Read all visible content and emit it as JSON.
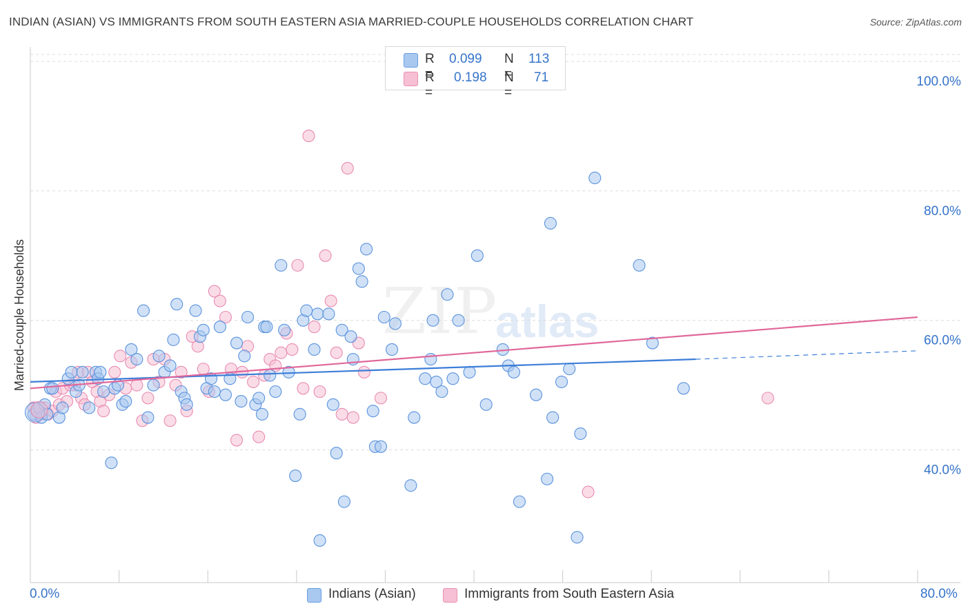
{
  "title": "INDIAN (ASIAN) VS IMMIGRANTS FROM SOUTH EASTERN ASIA MARRIED-COUPLE HOUSEHOLDS CORRELATION CHART",
  "source": "Source: ZipAtlas.com",
  "watermark": {
    "zip": "ZIP",
    "atlas": "atlas"
  },
  "colors": {
    "blue": "#3b7dd8",
    "blue_fill": "#a9c8f0",
    "pink": "#e0679a",
    "pink_fill": "#f6bfd3",
    "axis_label": "#3573c9",
    "grid": "#dcdcdc"
  },
  "legend": {
    "r_label": "R =",
    "n_label": "N =",
    "series": [
      {
        "r": "0.099",
        "n": "113"
      },
      {
        "r": "0.198",
        "n": "71"
      }
    ]
  },
  "chart_data": {
    "type": "scatter",
    "xlabel": "",
    "ylabel": "Married-couple Households",
    "xlim": [
      0,
      80
    ],
    "ylim": [
      19.5,
      101.5
    ],
    "x_tick_labels": [
      "0.0%",
      "80.0%"
    ],
    "y_ticks": [
      40,
      60,
      80,
      100
    ],
    "y_tick_labels": [
      "40.0%",
      "60.0%",
      "80.0%",
      "100.0%"
    ],
    "series": [
      {
        "name": "Indians (Asian)",
        "color": "#3b7dd8",
        "trend": {
          "x0": 0,
          "y0": 50.5,
          "x1": 60,
          "y1": 54.0,
          "dashed_to_x": 80,
          "dashed_to_y": 55.3
        },
        "points": [
          [
            0.3,
            45.5
          ],
          [
            0.6,
            46
          ],
          [
            0.8,
            46.5
          ],
          [
            1.0,
            45
          ],
          [
            1.3,
            47
          ],
          [
            1.5,
            45.5
          ],
          [
            1.8,
            49.5
          ],
          [
            2.0,
            49.5
          ],
          [
            2.6,
            45
          ],
          [
            2.9,
            46.5
          ],
          [
            3.4,
            51
          ],
          [
            3.7,
            52
          ],
          [
            4.1,
            49
          ],
          [
            4.4,
            50
          ],
          [
            4.7,
            52
          ],
          [
            5.3,
            46.5
          ],
          [
            5.9,
            52
          ],
          [
            6.1,
            51
          ],
          [
            6.3,
            52
          ],
          [
            6.6,
            49
          ],
          [
            7.3,
            38
          ],
          [
            7.6,
            49.5
          ],
          [
            7.9,
            50
          ],
          [
            8.3,
            47
          ],
          [
            8.6,
            47.5
          ],
          [
            9.1,
            55.5
          ],
          [
            9.6,
            54
          ],
          [
            10.2,
            61.5
          ],
          [
            10.6,
            45
          ],
          [
            11.1,
            50
          ],
          [
            11.6,
            54.5
          ],
          [
            12.1,
            52
          ],
          [
            12.6,
            53
          ],
          [
            12.9,
            57
          ],
          [
            13.2,
            62.5
          ],
          [
            13.6,
            49
          ],
          [
            13.9,
            48
          ],
          [
            14.1,
            47
          ],
          [
            14.9,
            61.5
          ],
          [
            15.3,
            57.5
          ],
          [
            15.6,
            58.5
          ],
          [
            15.9,
            49.5
          ],
          [
            16.3,
            51
          ],
          [
            16.6,
            49
          ],
          [
            17.1,
            59
          ],
          [
            17.6,
            48.5
          ],
          [
            18.0,
            51
          ],
          [
            18.6,
            56.5
          ],
          [
            19.0,
            47.5
          ],
          [
            19.3,
            54.5
          ],
          [
            19.6,
            60.5
          ],
          [
            20.3,
            47
          ],
          [
            20.6,
            48
          ],
          [
            20.9,
            45.5
          ],
          [
            21.1,
            59
          ],
          [
            21.3,
            59
          ],
          [
            21.6,
            51.5
          ],
          [
            22.1,
            49
          ],
          [
            22.6,
            68.5
          ],
          [
            22.9,
            58.5
          ],
          [
            23.3,
            52
          ],
          [
            23.9,
            36
          ],
          [
            24.3,
            45.5
          ],
          [
            24.6,
            60
          ],
          [
            24.9,
            61.5
          ],
          [
            25.6,
            55.5
          ],
          [
            25.9,
            61
          ],
          [
            26.1,
            26
          ],
          [
            26.9,
            61
          ],
          [
            27.3,
            47
          ],
          [
            27.6,
            39.5
          ],
          [
            28.1,
            58.5
          ],
          [
            28.3,
            32
          ],
          [
            28.9,
            57.5
          ],
          [
            29.1,
            54
          ],
          [
            29.6,
            68
          ],
          [
            29.9,
            66
          ],
          [
            30.3,
            71
          ],
          [
            30.9,
            46
          ],
          [
            31.1,
            40.5
          ],
          [
            31.6,
            40.5
          ],
          [
            31.9,
            60.5
          ],
          [
            32.6,
            55.5
          ],
          [
            32.9,
            59.5
          ],
          [
            34.3,
            34.5
          ],
          [
            34.6,
            45
          ],
          [
            35.6,
            51
          ],
          [
            36.1,
            54
          ],
          [
            36.3,
            60
          ],
          [
            36.6,
            50.5
          ],
          [
            37.1,
            49
          ],
          [
            37.6,
            64
          ],
          [
            38.1,
            51
          ],
          [
            38.6,
            60
          ],
          [
            39.6,
            52
          ],
          [
            40.3,
            70
          ],
          [
            41.1,
            47
          ],
          [
            42.6,
            55.5
          ],
          [
            43.1,
            53
          ],
          [
            43.6,
            52
          ],
          [
            44.1,
            32
          ],
          [
            45.6,
            48.5
          ],
          [
            46.6,
            35.5
          ],
          [
            46.9,
            75
          ],
          [
            47.1,
            45
          ],
          [
            47.9,
            50.5
          ],
          [
            48.6,
            52.5
          ],
          [
            49.6,
            42.5
          ],
          [
            49.3,
            26.5
          ],
          [
            50.9,
            82
          ],
          [
            54.9,
            68.5
          ],
          [
            56.1,
            56.5
          ],
          [
            58.9,
            49.5
          ]
        ]
      },
      {
        "name": "Immigrants from South Eastern Asia",
        "color": "#e0679a",
        "trend": {
          "x0": 0,
          "y0": 49.5,
          "x1": 80,
          "y1": 60.5
        },
        "points": [
          [
            0.3,
            46.5
          ],
          [
            0.5,
            45
          ],
          [
            0.7,
            46.5
          ],
          [
            1.0,
            45.5
          ],
          [
            1.3,
            46.5
          ],
          [
            1.6,
            45.5
          ],
          [
            2.0,
            46
          ],
          [
            2.3,
            49
          ],
          [
            2.6,
            47
          ],
          [
            2.9,
            49.5
          ],
          [
            3.3,
            47.5
          ],
          [
            3.6,
            50
          ],
          [
            4.0,
            50
          ],
          [
            4.3,
            52
          ],
          [
            4.6,
            48
          ],
          [
            4.9,
            47
          ],
          [
            5.2,
            52
          ],
          [
            5.6,
            50.5
          ],
          [
            6.0,
            49
          ],
          [
            6.3,
            47.5
          ],
          [
            6.6,
            46
          ],
          [
            7.1,
            48.5
          ],
          [
            7.6,
            52
          ],
          [
            8.1,
            54.5
          ],
          [
            8.6,
            49.5
          ],
          [
            9.1,
            53.5
          ],
          [
            9.6,
            50
          ],
          [
            10.1,
            44.5
          ],
          [
            10.6,
            48
          ],
          [
            11.1,
            54
          ],
          [
            11.6,
            50.5
          ],
          [
            12.1,
            54
          ],
          [
            12.6,
            44.5
          ],
          [
            13.1,
            50
          ],
          [
            13.6,
            52
          ],
          [
            14.1,
            46
          ],
          [
            14.6,
            57.5
          ],
          [
            15.1,
            56
          ],
          [
            15.6,
            52.5
          ],
          [
            16.1,
            49
          ],
          [
            16.6,
            64.5
          ],
          [
            17.1,
            63
          ],
          [
            17.6,
            60.5
          ],
          [
            18.1,
            52.5
          ],
          [
            18.6,
            41.5
          ],
          [
            19.1,
            52
          ],
          [
            19.6,
            56
          ],
          [
            20.1,
            50.5
          ],
          [
            20.6,
            42
          ],
          [
            21.1,
            51.5
          ],
          [
            21.6,
            54
          ],
          [
            22.1,
            53
          ],
          [
            22.6,
            55
          ],
          [
            23.1,
            58
          ],
          [
            23.6,
            55.5
          ],
          [
            24.1,
            68.5
          ],
          [
            24.6,
            49.5
          ],
          [
            25.1,
            88.5
          ],
          [
            25.6,
            59
          ],
          [
            26.1,
            49
          ],
          [
            26.6,
            70
          ],
          [
            27.1,
            63
          ],
          [
            27.6,
            55
          ],
          [
            28.1,
            45.5
          ],
          [
            28.6,
            83.5
          ],
          [
            29.1,
            45
          ],
          [
            29.6,
            56.5
          ],
          [
            30.1,
            52
          ],
          [
            31.6,
            48
          ],
          [
            50.3,
            33.5
          ],
          [
            66.5,
            48
          ]
        ]
      }
    ]
  },
  "bottom_legend": [
    "Indians (Asian)",
    "Immigrants from South Eastern Asia"
  ]
}
